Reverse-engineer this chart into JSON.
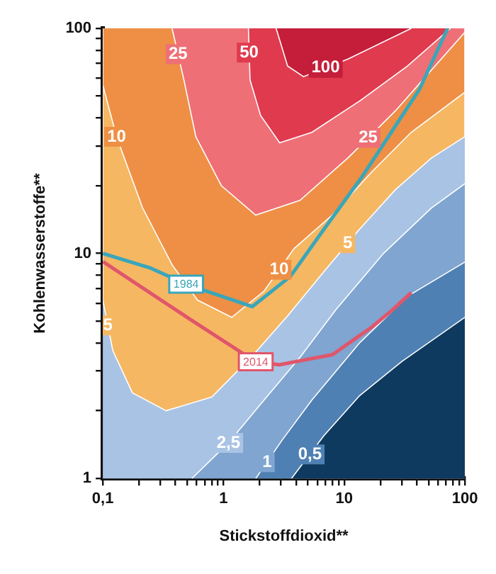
{
  "chart_data": {
    "type": "line",
    "xlabel": "Stickstoffdioxid**",
    "ylabel": "Kohlenwasserstoffe**",
    "log": "xy",
    "grid": false,
    "legend": false,
    "marker": "none",
    "xlim": [
      0.1,
      100
    ],
    "ylim": [
      1,
      100
    ],
    "xticks": [
      {
        "value": 0.1,
        "label": "0,1"
      },
      {
        "value": 0.2,
        "label": null
      },
      {
        "value": 0.3,
        "label": null
      },
      {
        "value": 0.4,
        "label": null
      },
      {
        "value": 0.5,
        "label": null
      },
      {
        "value": 0.6,
        "label": null
      },
      {
        "value": 0.7,
        "label": null
      },
      {
        "value": 0.8,
        "label": null
      },
      {
        "value": 0.9,
        "label": null
      },
      1,
      {
        "value": 2,
        "label": null
      },
      {
        "value": 3,
        "label": null
      },
      {
        "value": 4,
        "label": null
      },
      {
        "value": 5,
        "label": null
      },
      {
        "value": 6,
        "label": null
      },
      {
        "value": 7,
        "label": null
      },
      {
        "value": 8,
        "label": null
      },
      {
        "value": 9,
        "label": null
      },
      10,
      {
        "value": 20,
        "label": null
      },
      {
        "value": 30,
        "label": null
      },
      {
        "value": 40,
        "label": null
      },
      {
        "value": 50,
        "label": null
      },
      {
        "value": 60,
        "label": null
      },
      {
        "value": 70,
        "label": null
      },
      {
        "value": 80,
        "label": null
      },
      {
        "value": 90,
        "label": null
      },
      100
    ],
    "yticks": [
      1,
      {
        "value": 2,
        "label": null
      },
      {
        "value": 3,
        "label": null
      },
      {
        "value": 4,
        "label": null
      },
      {
        "value": 5,
        "label": null
      },
      {
        "value": 6,
        "label": null
      },
      {
        "value": 7,
        "label": null
      },
      {
        "value": 8,
        "label": null
      },
      {
        "value": 9,
        "label": null
      },
      10,
      {
        "value": 20,
        "label": null
      },
      {
        "value": 30,
        "label": null
      },
      {
        "value": 40,
        "label": null
      },
      {
        "value": 50,
        "label": null
      },
      {
        "value": 60,
        "label": null
      },
      {
        "value": 70,
        "label": null
      },
      {
        "value": 80,
        "label": null
      },
      {
        "value": 90,
        "label": null
      },
      100
    ],
    "series": [
      {
        "type": "area",
        "color": "#f6b763",
        "x": [
          0.1,
          0.1,
          0.121,
          0.176,
          0.335,
          0.8,
          1.73,
          3.42,
          6.8,
          13.4,
          26.6,
          52.8,
          100,
          100
        ],
        "values": [
          100,
          6.2,
          3.7,
          2.4,
          2.0,
          2.3,
          3.5,
          5.3,
          8.3,
          12.8,
          19.2,
          26.5,
          33,
          100
        ]
      },
      {
        "type": "area",
        "color": "#ee8f45",
        "x": [
          0.1,
          0.1,
          0.13,
          0.213,
          0.375,
          0.61,
          1.17,
          2.17,
          3.84,
          7.96,
          16.9,
          35.9,
          100,
          100
        ],
        "values": [
          100,
          56,
          33,
          16,
          8.9,
          6.2,
          5.2,
          6.8,
          10.5,
          14.8,
          23,
          34.5,
          52,
          100
        ]
      },
      {
        "type": "area",
        "color": "#ef6f76",
        "x": [
          0.375,
          0.47,
          0.59,
          0.96,
          1.85,
          4.3,
          10.7,
          26.6,
          100,
          100
        ],
        "values": [
          100,
          59,
          33,
          20,
          14.8,
          17.2,
          26.5,
          43,
          96,
          100
        ]
      },
      {
        "type": "area",
        "color": "#e03a4e",
        "x": [
          1.61,
          1.66,
          2.03,
          2.92,
          5.4,
          13.4,
          33.5,
          76
        ],
        "values": [
          100,
          59,
          41,
          31,
          34.5,
          47.5,
          68,
          100
        ]
      },
      {
        "type": "area",
        "color": "#c41e3a",
        "x": [
          2.73,
          3.4,
          4.6,
          10.7,
          36
        ],
        "values": [
          100,
          68,
          61,
          73,
          100
        ]
      },
      {
        "type": "area",
        "color": "#7fa5d0",
        "x": [
          0.547,
          1.1,
          2.17,
          4.3,
          8.5,
          21.2,
          52.8,
          100
        ],
        "values": [
          1,
          1.44,
          2.23,
          3.45,
          5.6,
          10,
          15.9,
          20.4
        ]
      },
      {
        "type": "area",
        "color": "#4f80b3",
        "x": [
          1.85,
          3.06,
          5.4,
          13.4,
          33.5,
          100
        ],
        "values": [
          1,
          1.48,
          2.23,
          4,
          6.45,
          9.15
        ]
      },
      {
        "type": "area",
        "color": "#0f3a5f",
        "x": [
          3.66,
          6.8,
          13.4,
          29.8,
          100
        ],
        "values": [
          1,
          1.55,
          2.33,
          3.3,
          5.2
        ]
      },
      {
        "type": "line",
        "name": "1984",
        "color": "#3aa6b9",
        "x": [
          0.1,
          0.25,
          0.49,
          1.73,
          3.58,
          6.8,
          14.4,
          42,
          72
        ],
        "values": [
          10,
          8.6,
          7.3,
          5.8,
          7.9,
          12.8,
          22.3,
          53.5,
          100
        ]
      },
      {
        "type": "line",
        "name": "2014",
        "color": "#e0566b",
        "x": [
          0.1,
          0.5,
          1.85,
          2.9,
          8,
          16.9,
          25,
          36
        ],
        "values": [
          9.2,
          5.2,
          3.3,
          3.2,
          3.55,
          4.7,
          5.6,
          6.7
        ]
      }
    ],
    "bands": [
      {
        "axis": "y",
        "from": 1,
        "to": 100,
        "color": "#a9c3e4"
      }
    ],
    "annotations": [
      {
        "text": "25",
        "x": 0.42,
        "y": 76.7
      },
      {
        "text": "50",
        "x": 1.63,
        "y": 78
      },
      {
        "text": "100",
        "x": 7.02,
        "y": 66.7
      },
      {
        "text": "10",
        "x": 0.13,
        "y": 33
      },
      {
        "text": "25",
        "x": 15.8,
        "y": 32.6
      },
      {
        "text": "10",
        "x": 2.89,
        "y": 8.45
      },
      {
        "text": "5",
        "x": 10.7,
        "y": 11.1
      },
      {
        "text": "5",
        "x": 0.11,
        "y": 4.79
      },
      {
        "text": "2,5",
        "x": 1.1,
        "y": 1.44
      },
      {
        "text": "1",
        "x": 2.3,
        "y": 1.18
      },
      {
        "text": "0,5",
        "x": 5.2,
        "y": 1.28
      }
    ]
  }
}
